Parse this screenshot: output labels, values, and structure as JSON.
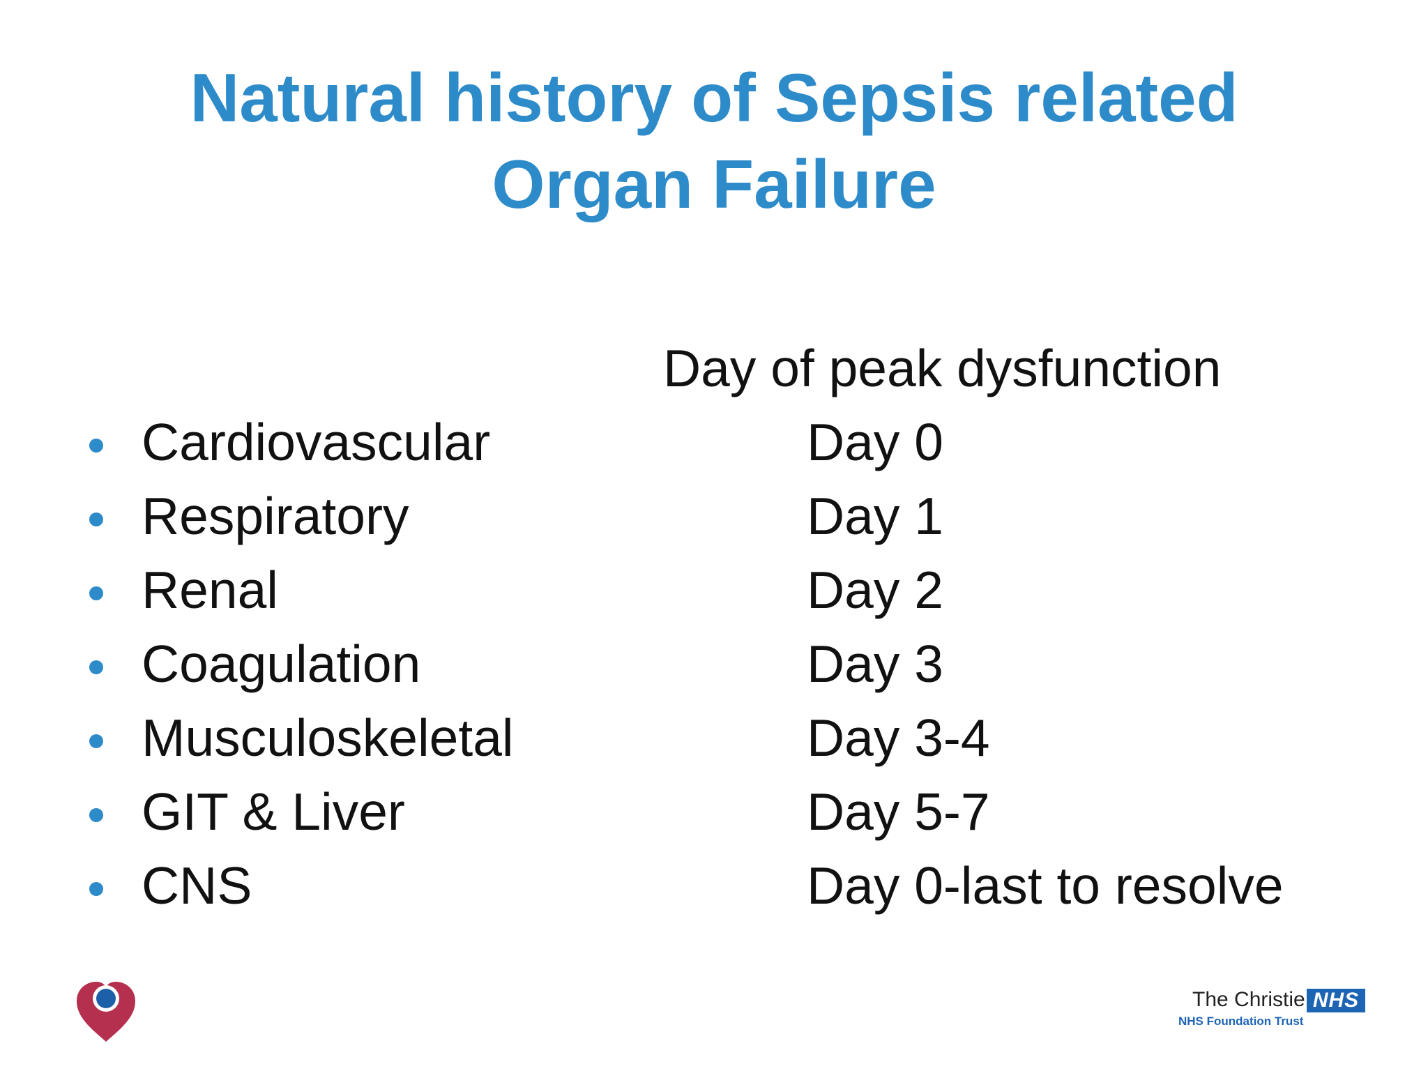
{
  "slide": {
    "title_line1": "Natural history of Sepsis related",
    "title_line2": "Organ Failure",
    "column_header": "Day of peak dysfunction",
    "rows": [
      {
        "organ": "Cardiovascular",
        "day": "Day 0"
      },
      {
        "organ": "Respiratory",
        "day": "Day 1"
      },
      {
        "organ": "Renal",
        "day": "Day 2"
      },
      {
        "organ": "Coagulation",
        "day": "Day 3"
      },
      {
        "organ": "Musculoskeletal",
        "day": "Day 3-4"
      },
      {
        "organ": "GIT & Liver",
        "day": "Day 5-7"
      },
      {
        "organ": "CNS",
        "day": "Day 0-last to resolve"
      }
    ]
  },
  "footer": {
    "left_logo_icon": "heart-logo-icon",
    "christie_name": "The Christie",
    "nhs_label": "NHS",
    "christie_sub": "NHS Foundation Trust"
  },
  "colors": {
    "title": "#2E8BC9",
    "bullet": "#2E8BC9",
    "heart": "#B5304F",
    "heart_dot": "#1D5FA8",
    "nhs_blue": "#1D64B4"
  }
}
